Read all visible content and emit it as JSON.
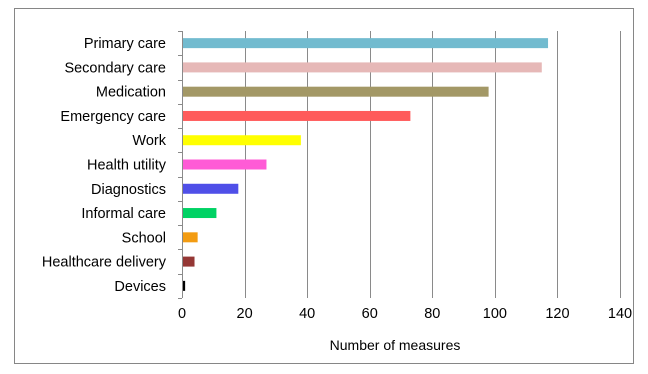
{
  "chart_data": {
    "type": "bar",
    "orientation": "horizontal",
    "categories": [
      "Primary care",
      "Secondary care",
      "Medication",
      "Emergency care",
      "Work",
      "Health utility",
      "Diagnostics",
      "Informal care",
      "School",
      "Healthcare delivery",
      "Devices"
    ],
    "values": [
      117,
      115,
      98,
      73,
      38,
      27,
      18,
      11,
      5,
      4,
      1
    ],
    "colors": [
      "#72BBCF",
      "#E6B8B7",
      "#A39866",
      "#FF5B5B",
      "#FFFF00",
      "#FF5BD6",
      "#4F4FE8",
      "#00D264",
      "#F39C12",
      "#953735",
      "#000000"
    ],
    "title": "",
    "xlabel": "Number of measures",
    "ylabel": "",
    "xlim": [
      0,
      140
    ],
    "xticks": [
      0,
      20,
      40,
      60,
      80,
      100,
      120,
      140
    ],
    "grid": true,
    "legend": "none"
  }
}
